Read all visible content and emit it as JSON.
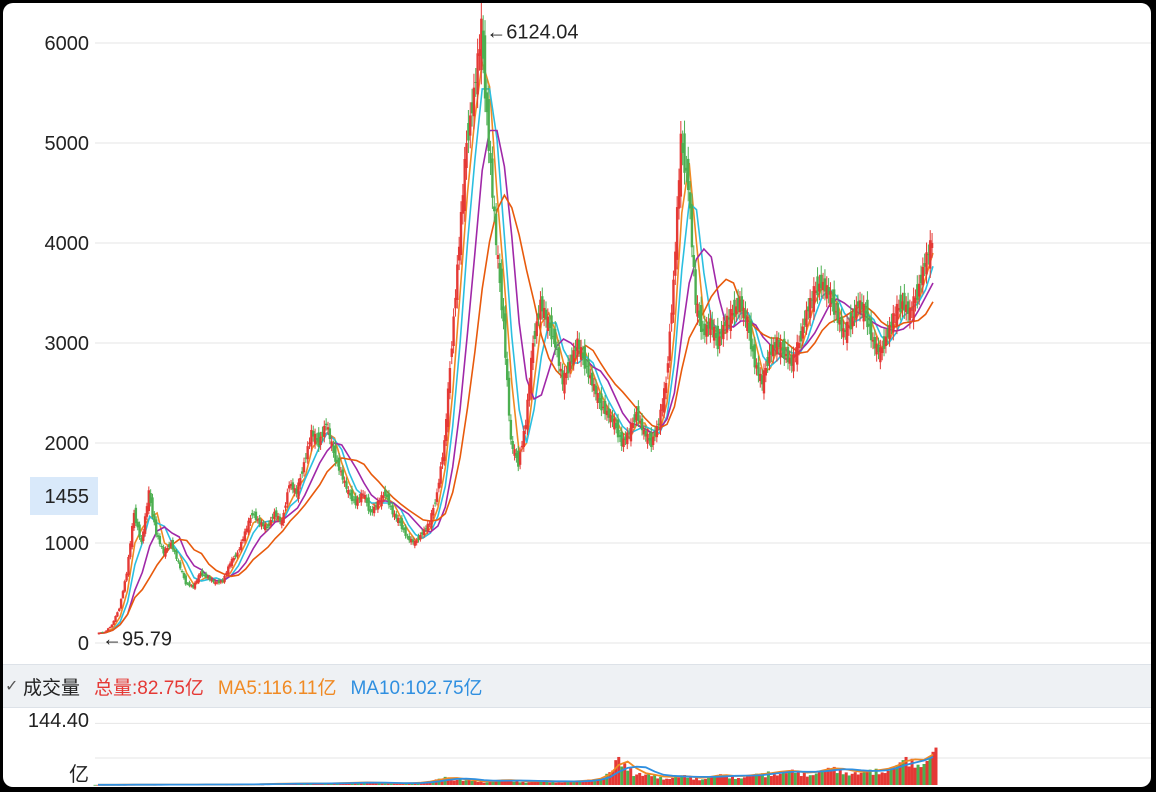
{
  "chart_data": [
    {
      "type": "candlestick",
      "title": "",
      "ylim": [
        0,
        6300
      ],
      "y_ticks": [
        "0",
        "1000",
        "2000",
        "3000",
        "4000",
        "5000",
        "6000"
      ],
      "grid": true,
      "price_marker": "1455",
      "annotations": [
        {
          "text": "←6124.04",
          "value": 6124.04
        },
        {
          "text": "←95.79",
          "value": 95.79
        }
      ],
      "series": [
        {
          "name": "price",
          "color_up": "#e53935",
          "color_down": "#4caf50",
          "points": [
            95.79,
            110,
            180,
            350,
            700,
            1300,
            1000,
            1500,
            1100,
            900,
            1000,
            800,
            600,
            560,
            700,
            650,
            600,
            620,
            800,
            900,
            1100,
            1300,
            1200,
            1150,
            1300,
            1200,
            1600,
            1500,
            1800,
            2100,
            2000,
            2200,
            1900,
            1700,
            1500,
            1400,
            1500,
            1300,
            1400,
            1500,
            1300,
            1200,
            1050,
            1000,
            1100,
            1200,
            1500,
            2000,
            3000,
            4000,
            5000,
            5500,
            6124.04,
            5000,
            4000,
            3200,
            2000,
            1800,
            2200,
            3000,
            3400,
            3200,
            3000,
            2600,
            2800,
            3000,
            2800,
            2600,
            2400,
            2300,
            2200,
            2000,
            2100,
            2300,
            2100,
            2000,
            2200,
            2600,
            3600,
            5000,
            4600,
            3400,
            3100,
            3200,
            3000,
            3200,
            3300,
            3400,
            3200,
            2800,
            2600,
            2900,
            3000,
            2900,
            2800,
            3000,
            3300,
            3500,
            3600,
            3500,
            3300,
            3100,
            3200,
            3400,
            3300,
            3000,
            2900,
            3100,
            3300,
            3400,
            3300,
            3500,
            3800,
            4000
          ]
        }
      ]
    },
    {
      "type": "bar",
      "title": "",
      "ylim": [
        0,
        150
      ],
      "y_ticks": [
        "144.40"
      ],
      "y_unit": "亿",
      "series": [
        {
          "name": "volume",
          "values": [
            0.5,
            0.5,
            0.6,
            0.6,
            0.7,
            0.8,
            0.8,
            0.9,
            1,
            1,
            1,
            1.1,
            1.2,
            1.2,
            1.3,
            1.4,
            1.4,
            1.5,
            2,
            2.5,
            3,
            3,
            3.5,
            4,
            3.5,
            3.5,
            4,
            5,
            5,
            6,
            6,
            5,
            5,
            4,
            4,
            5,
            6,
            10,
            14,
            18,
            15,
            12,
            10,
            8,
            10,
            12,
            11,
            9,
            8,
            10,
            9,
            8,
            8,
            9,
            10,
            12,
            18,
            32,
            62,
            48,
            30,
            26,
            22,
            18,
            20,
            22,
            18,
            16,
            20,
            24,
            22,
            20,
            22,
            25,
            26,
            30,
            32,
            34,
            30,
            28,
            33,
            38,
            40,
            36,
            32,
            30,
            34,
            36,
            40,
            50,
            62,
            58,
            60,
            82.75
          ]
        },
        {
          "name": "MA5",
          "values": [
            0.5,
            0.5,
            0.6,
            0.6,
            0.7,
            0.8,
            0.8,
            0.9,
            1,
            1,
            1,
            1.1,
            1.2,
            1.2,
            1.3,
            1.4,
            1.4,
            1.5,
            2,
            2.5,
            3,
            3,
            3.5,
            4,
            3.5,
            3.5,
            4,
            5,
            5,
            6,
            6,
            5,
            5,
            4,
            4,
            5,
            6,
            10,
            14,
            18,
            15,
            12,
            10,
            8,
            10,
            12,
            11,
            9,
            8,
            10,
            9,
            8,
            8,
            9,
            10,
            12,
            18,
            32,
            62,
            48,
            30,
            26,
            22,
            18,
            20,
            22,
            18,
            16,
            20,
            24,
            22,
            20,
            22,
            25,
            26,
            30,
            32,
            34,
            30,
            28,
            33,
            38,
            40,
            36,
            32,
            30,
            34,
            36,
            40,
            50,
            62,
            58,
            60,
            116.11
          ]
        },
        {
          "name": "MA10",
          "values": [
            0.5,
            0.5,
            0.6,
            0.6,
            0.7,
            0.8,
            0.8,
            0.9,
            1,
            1,
            1,
            1.1,
            1.2,
            1.2,
            1.3,
            1.4,
            1.4,
            1.5,
            2,
            2.5,
            3,
            3,
            3.5,
            4,
            3.5,
            3.5,
            4,
            5,
            5,
            6,
            6,
            5,
            5,
            4,
            4,
            5,
            6,
            10,
            14,
            18,
            15,
            12,
            10,
            8,
            10,
            12,
            11,
            9,
            8,
            10,
            9,
            8,
            8,
            9,
            10,
            12,
            18,
            32,
            62,
            48,
            30,
            26,
            22,
            18,
            20,
            22,
            18,
            16,
            20,
            24,
            22,
            20,
            22,
            25,
            26,
            30,
            32,
            34,
            30,
            28,
            33,
            38,
            40,
            36,
            32,
            30,
            34,
            36,
            40,
            50,
            62,
            58,
            60,
            102.75
          ]
        }
      ]
    }
  ],
  "legend": {
    "chevron": "✓",
    "title": "成交量",
    "total": "总量:82.75亿",
    "ma5": "MA5:116.11亿",
    "ma10": "MA10:102.75亿",
    "colors": {
      "total": "#e53935",
      "ma5": "#f08a24",
      "ma10": "#2f8fe0"
    }
  },
  "colors": {
    "up": "#e53935",
    "down": "#4caf50",
    "ma_lines": [
      "#f08a24",
      "#2bbfe0",
      "#a028a8",
      "#e85a0c"
    ],
    "vol_ma5": "#f08a24",
    "vol_ma10": "#2f8fe0",
    "grid": "#e6e6e6"
  }
}
